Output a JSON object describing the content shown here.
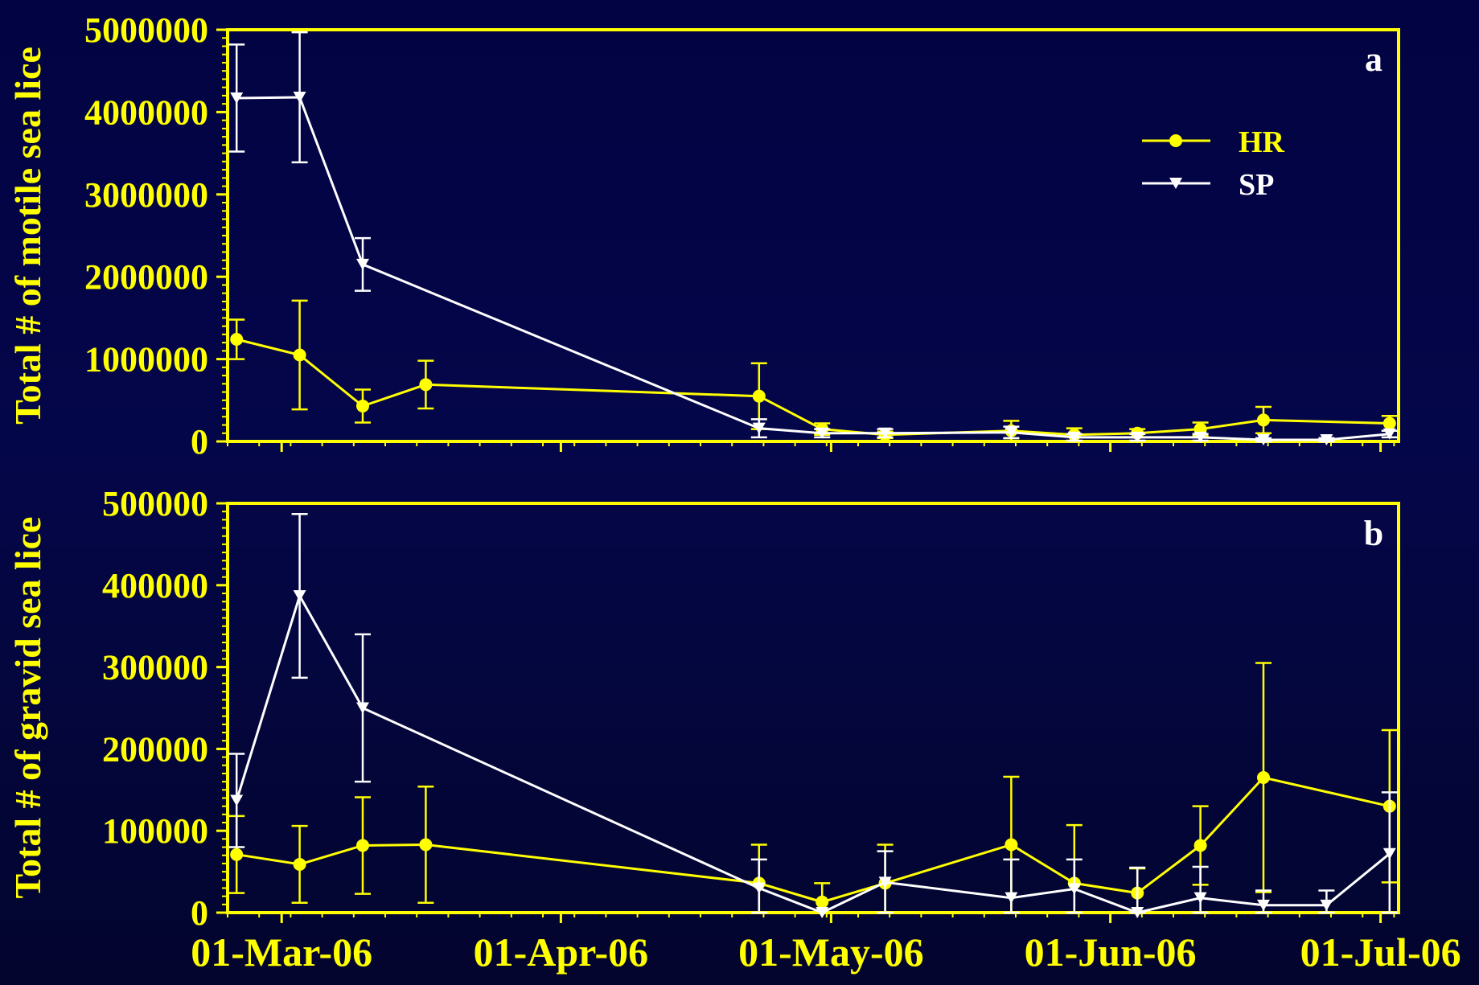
{
  "colors": {
    "axis": "#ffff00",
    "series_HR": "#ffff00",
    "series_SP": "#ffffff",
    "background": "#03054a"
  },
  "chart_data": [
    {
      "type": "line",
      "panel_label": "a",
      "ylabel": "Total # of motile sea lice",
      "xlabel": "",
      "ylim": [
        0,
        5000000
      ],
      "yticks": [
        "0",
        "1000000",
        "2000000",
        "3000000",
        "4000000",
        "5000000"
      ],
      "xlim": [
        "2006-02-23",
        "2006-07-03"
      ],
      "legend": {
        "position": "top-right",
        "entries": [
          "HR",
          "SP"
        ]
      },
      "series": [
        {
          "name": "HR",
          "marker": "circle",
          "x": [
            "2006-02-24",
            "2006-03-03",
            "2006-03-10",
            "2006-03-17",
            "2006-04-23",
            "2006-04-30",
            "2006-05-07",
            "2006-05-21",
            "2006-05-28",
            "2006-06-04",
            "2006-06-11",
            "2006-06-18",
            "2006-07-02"
          ],
          "y": [
            1240000,
            1050000,
            430000,
            690000,
            550000,
            150000,
            80000,
            130000,
            80000,
            100000,
            150000,
            260000,
            220000
          ],
          "err": [
            240000,
            660000,
            200000,
            290000,
            400000,
            70000,
            40000,
            120000,
            80000,
            50000,
            80000,
            160000,
            90000
          ]
        },
        {
          "name": "SP",
          "marker": "triangle-down",
          "x": [
            "2006-02-24",
            "2006-03-03",
            "2006-03-10",
            "2006-04-23",
            "2006-04-30",
            "2006-05-07",
            "2006-05-21",
            "2006-05-28",
            "2006-06-04",
            "2006-06-11",
            "2006-06-18",
            "2006-06-25",
            "2006-07-02"
          ],
          "y": [
            4170000,
            4180000,
            2150000,
            160000,
            100000,
            100000,
            110000,
            50000,
            50000,
            50000,
            20000,
            20000,
            90000
          ],
          "err": [
            650000,
            790000,
            320000,
            110000,
            50000,
            50000,
            70000,
            40000,
            40000,
            40000,
            20000,
            20000,
            40000
          ]
        }
      ]
    },
    {
      "type": "line",
      "panel_label": "b",
      "ylabel": "Total # of gravid sea lice",
      "xlabel": "",
      "ylim": [
        0,
        500000
      ],
      "yticks": [
        "0",
        "100000",
        "200000",
        "300000",
        "400000",
        "500000"
      ],
      "xlim": [
        "2006-02-23",
        "2006-07-03"
      ],
      "xticks": [
        "01-Mar-06",
        "01-Apr-06",
        "01-May-06",
        "01-Jun-06",
        "01-Jul-06"
      ],
      "series": [
        {
          "name": "HR",
          "marker": "circle",
          "x": [
            "2006-02-24",
            "2006-03-03",
            "2006-03-10",
            "2006-03-17",
            "2006-04-23",
            "2006-04-30",
            "2006-05-07",
            "2006-05-21",
            "2006-05-28",
            "2006-06-04",
            "2006-06-11",
            "2006-06-18",
            "2006-07-02"
          ],
          "y": [
            71000,
            59000,
            82000,
            83000,
            36000,
            13000,
            36000,
            83000,
            36000,
            24000,
            82000,
            165000,
            130000
          ],
          "err": [
            47000,
            47000,
            59000,
            71000,
            47000,
            23000,
            47000,
            83000,
            71000,
            30000,
            48000,
            140000,
            93000
          ]
        },
        {
          "name": "SP",
          "marker": "triangle-down",
          "x": [
            "2006-02-24",
            "2006-03-03",
            "2006-03-10",
            "2006-04-23",
            "2006-04-30",
            "2006-05-07",
            "2006-05-21",
            "2006-05-28",
            "2006-06-04",
            "2006-06-11",
            "2006-06-18",
            "2006-06-25",
            "2006-07-02"
          ],
          "y": [
            137000,
            387000,
            250000,
            30000,
            0,
            37000,
            18000,
            29000,
            0,
            18000,
            9000,
            9000,
            72000
          ],
          "err": [
            57000,
            100000,
            90000,
            35000,
            0,
            38000,
            47000,
            36000,
            55000,
            38000,
            18000,
            18000,
            75000
          ]
        }
      ]
    }
  ]
}
